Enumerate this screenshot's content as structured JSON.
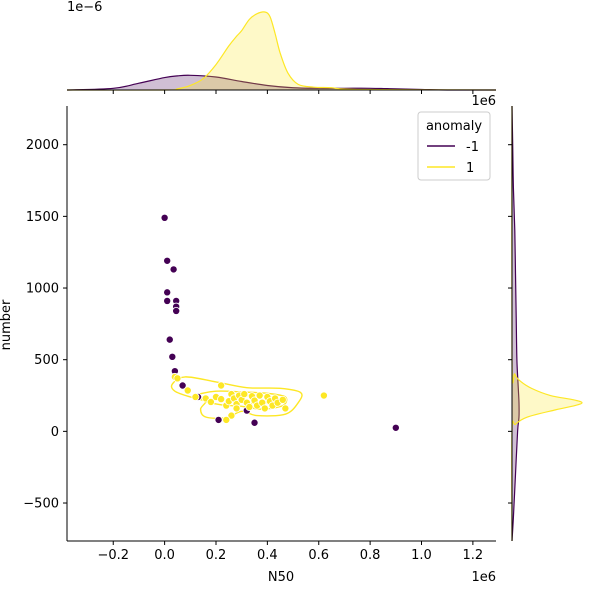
{
  "chart_data": {
    "type": "scatter",
    "xlabel": "N50",
    "ylabel": "number",
    "x_offset_label": "1e6",
    "y_offset_label_top": "1e−6",
    "y_offset_label_right": "1e6",
    "xlim": [
      -0.38,
      1.29
    ],
    "ylim": [
      -765,
      2270
    ],
    "x_ticks": [
      -0.2,
      0.0,
      0.2,
      0.4,
      0.6,
      0.8,
      1.0,
      1.2
    ],
    "x_tick_labels": [
      "−0.2",
      "0.0",
      "0.2",
      "0.4",
      "0.6",
      "0.8",
      "1.0",
      "1.2"
    ],
    "y_ticks": [
      -500,
      0,
      500,
      1000,
      1500,
      2000
    ],
    "y_tick_labels": [
      "−500",
      "0",
      "500",
      "1000",
      "1500",
      "2000"
    ],
    "legend": {
      "title": "anomaly",
      "placement": "top-right",
      "entries": [
        {
          "label": "-1",
          "color": "#440154"
        },
        {
          "label": "1",
          "color": "#fde725"
        }
      ]
    },
    "series": [
      {
        "name": "-1",
        "color": "#440154",
        "points": [
          [
            0.0,
            1490
          ],
          [
            0.01,
            1190
          ],
          [
            0.035,
            1130
          ],
          [
            0.01,
            970
          ],
          [
            0.01,
            910
          ],
          [
            0.045,
            910
          ],
          [
            0.045,
            870
          ],
          [
            0.045,
            840
          ],
          [
            0.02,
            640
          ],
          [
            0.03,
            520
          ],
          [
            0.04,
            420
          ],
          [
            0.07,
            320
          ],
          [
            0.13,
            240
          ],
          [
            0.21,
            80
          ],
          [
            0.32,
            145
          ],
          [
            0.35,
            60
          ],
          [
            0.9,
            25
          ]
        ]
      },
      {
        "name": "1",
        "color": "#fde725",
        "points": [
          [
            0.04,
            380
          ],
          [
            0.05,
            370
          ],
          [
            0.09,
            285
          ],
          [
            0.12,
            240
          ],
          [
            0.16,
            230
          ],
          [
            0.18,
            205
          ],
          [
            0.2,
            240
          ],
          [
            0.22,
            225
          ],
          [
            0.22,
            320
          ],
          [
            0.24,
            180
          ],
          [
            0.25,
            210
          ],
          [
            0.26,
            260
          ],
          [
            0.27,
            230
          ],
          [
            0.28,
            190
          ],
          [
            0.28,
            160
          ],
          [
            0.29,
            250
          ],
          [
            0.3,
            220
          ],
          [
            0.31,
            260
          ],
          [
            0.32,
            200
          ],
          [
            0.33,
            170
          ],
          [
            0.34,
            245
          ],
          [
            0.35,
            215
          ],
          [
            0.36,
            180
          ],
          [
            0.37,
            250
          ],
          [
            0.38,
            200
          ],
          [
            0.39,
            160
          ],
          [
            0.4,
            240
          ],
          [
            0.41,
            210
          ],
          [
            0.42,
            180
          ],
          [
            0.43,
            230
          ],
          [
            0.44,
            200
          ],
          [
            0.46,
            220
          ],
          [
            0.47,
            160
          ],
          [
            0.26,
            110
          ],
          [
            0.24,
            80
          ],
          [
            0.62,
            250
          ]
        ]
      }
    ],
    "density": {
      "top": {
        "series": [
          {
            "name": "-1",
            "color": "#440154",
            "x": [
              -0.38,
              -0.2,
              -0.1,
              0.0,
              0.05,
              0.1,
              0.2,
              0.3,
              0.4,
              0.5,
              0.6,
              0.7,
              0.8,
              0.9,
              1.0,
              1.1,
              1.29
            ],
            "y": [
              0.0,
              0.03,
              0.12,
              0.22,
              0.25,
              0.26,
              0.23,
              0.15,
              0.08,
              0.04,
              0.03,
              0.03,
              0.03,
              0.02,
              0.01,
              0.0,
              0.0
            ]
          },
          {
            "name": "1",
            "color": "#fde725",
            "x": [
              -0.38,
              0.0,
              0.05,
              0.1,
              0.15,
              0.2,
              0.25,
              0.28,
              0.3,
              0.33,
              0.36,
              0.39,
              0.41,
              0.43,
              0.45,
              0.48,
              0.52,
              0.58,
              0.65,
              0.75,
              1.29
            ],
            "y": [
              0.0,
              0.0,
              0.02,
              0.08,
              0.2,
              0.45,
              0.78,
              0.95,
              1.05,
              1.25,
              1.35,
              1.38,
              1.3,
              1.0,
              0.65,
              0.3,
              0.1,
              0.05,
              0.04,
              0.01,
              0.0
            ]
          }
        ]
      },
      "right": {
        "series": [
          {
            "name": "-1",
            "color": "#440154",
            "y": [
              -765,
              -600,
              -300,
              0,
              100,
              200,
              300,
              500,
              800,
              1100,
              1400,
              1700,
              2000,
              2270
            ],
            "d": [
              0.0,
              0.02,
              0.05,
              0.08,
              0.1,
              0.1,
              0.09,
              0.07,
              0.06,
              0.05,
              0.04,
              0.02,
              0.01,
              0.0
            ]
          },
          {
            "name": "1",
            "color": "#fde725",
            "y": [
              -765,
              0,
              50,
              100,
              150,
              180,
              200,
              220,
              250,
              300,
              350,
              400,
              500,
              2270
            ],
            "d": [
              0.0,
              0.0,
              0.05,
              0.22,
              0.62,
              0.9,
              1.0,
              0.88,
              0.55,
              0.28,
              0.12,
              0.04,
              0.0,
              0.0
            ]
          }
        ]
      }
    },
    "kde_contours": [
      {
        "color": "#fde725",
        "rings": [
          [
            [
              0.03,
              330
            ],
            [
              0.08,
              380
            ],
            [
              0.2,
              345
            ],
            [
              0.32,
              305
            ],
            [
              0.45,
              300
            ],
            [
              0.53,
              270
            ],
            [
              0.52,
              200
            ],
            [
              0.47,
              120
            ],
            [
              0.36,
              110
            ],
            [
              0.3,
              140
            ],
            [
              0.24,
              95
            ],
            [
              0.16,
              100
            ],
            [
              0.14,
              155
            ],
            [
              0.16,
              215
            ],
            [
              0.1,
              240
            ],
            [
              0.04,
              280
            ]
          ],
          [
            [
              0.12,
              250
            ],
            [
              0.2,
              280
            ],
            [
              0.3,
              275
            ],
            [
              0.4,
              265
            ],
            [
              0.47,
              240
            ],
            [
              0.46,
              180
            ],
            [
              0.38,
              155
            ],
            [
              0.3,
              175
            ],
            [
              0.22,
              185
            ],
            [
              0.15,
              215
            ]
          ],
          [
            [
              0.26,
              225
            ],
            [
              0.32,
              250
            ],
            [
              0.4,
              245
            ],
            [
              0.43,
              215
            ],
            [
              0.36,
              195
            ],
            [
              0.29,
              205
            ]
          ]
        ]
      }
    ]
  }
}
